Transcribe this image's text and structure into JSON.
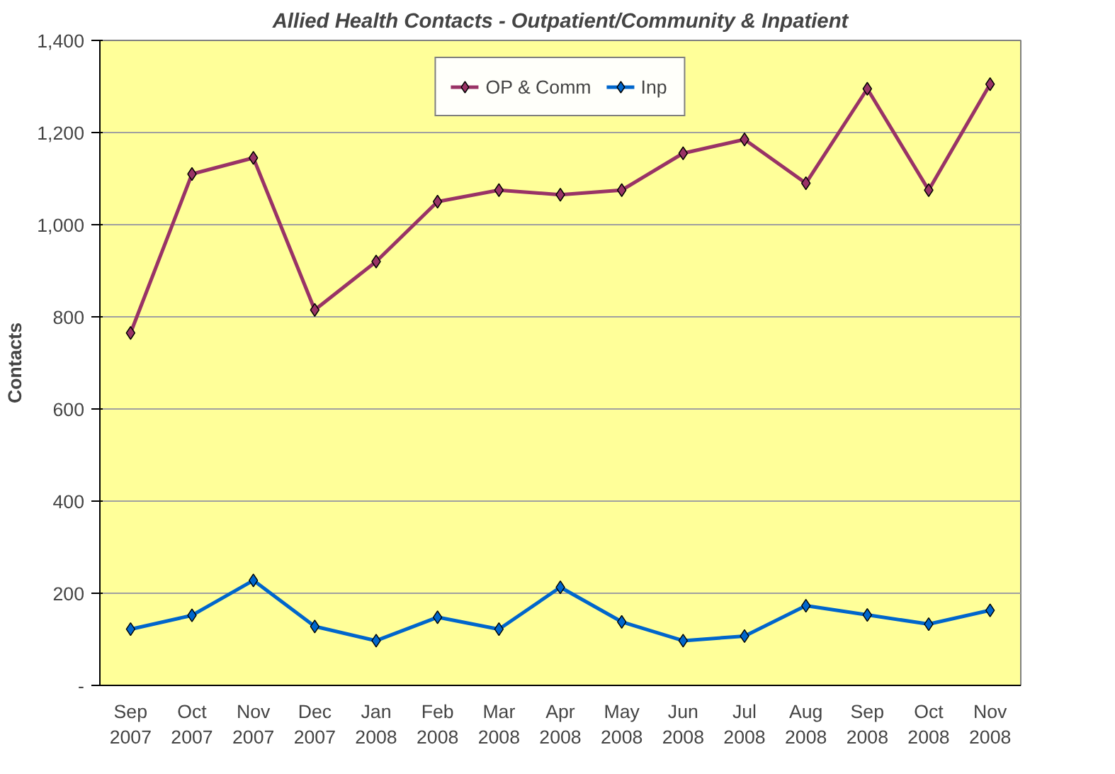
{
  "chart_data": {
    "type": "line",
    "title": "Allied Health Contacts - Outpatient/Community & Inpatient",
    "ylabel": "Contacts",
    "categories": [
      "Sep 2007",
      "Oct 2007",
      "Nov 2007",
      "Dec 2007",
      "Jan 2008",
      "Feb 2008",
      "Mar 2008",
      "Apr 2008",
      "May 2008",
      "Jun 2008",
      "Jul 2008",
      "Aug 2008",
      "Sep 2008",
      "Oct 2008",
      "Nov 2008"
    ],
    "series": [
      {
        "name": "OP & Comm",
        "color": "#993366",
        "values": [
          765,
          1110,
          1145,
          815,
          920,
          1050,
          1075,
          1065,
          1075,
          1155,
          1185,
          1090,
          1295,
          1075,
          1305
        ]
      },
      {
        "name": "Inp",
        "color": "#0066cc",
        "values": [
          122,
          152,
          228,
          128,
          97,
          148,
          122,
          213,
          138,
          97,
          107,
          173,
          153,
          133,
          163
        ]
      }
    ],
    "ylim": [
      0,
      1400
    ],
    "yticks": [
      {
        "value": 0,
        "label": "-"
      },
      200,
      400,
      600,
      800,
      {
        "value": 1000,
        "label": "1,000"
      },
      {
        "value": 1200,
        "label": "1,200"
      },
      {
        "value": 1400,
        "label": "1,400"
      }
    ],
    "grid": "y",
    "legend": "top",
    "marker": "diamond",
    "line_style": "solid"
  }
}
